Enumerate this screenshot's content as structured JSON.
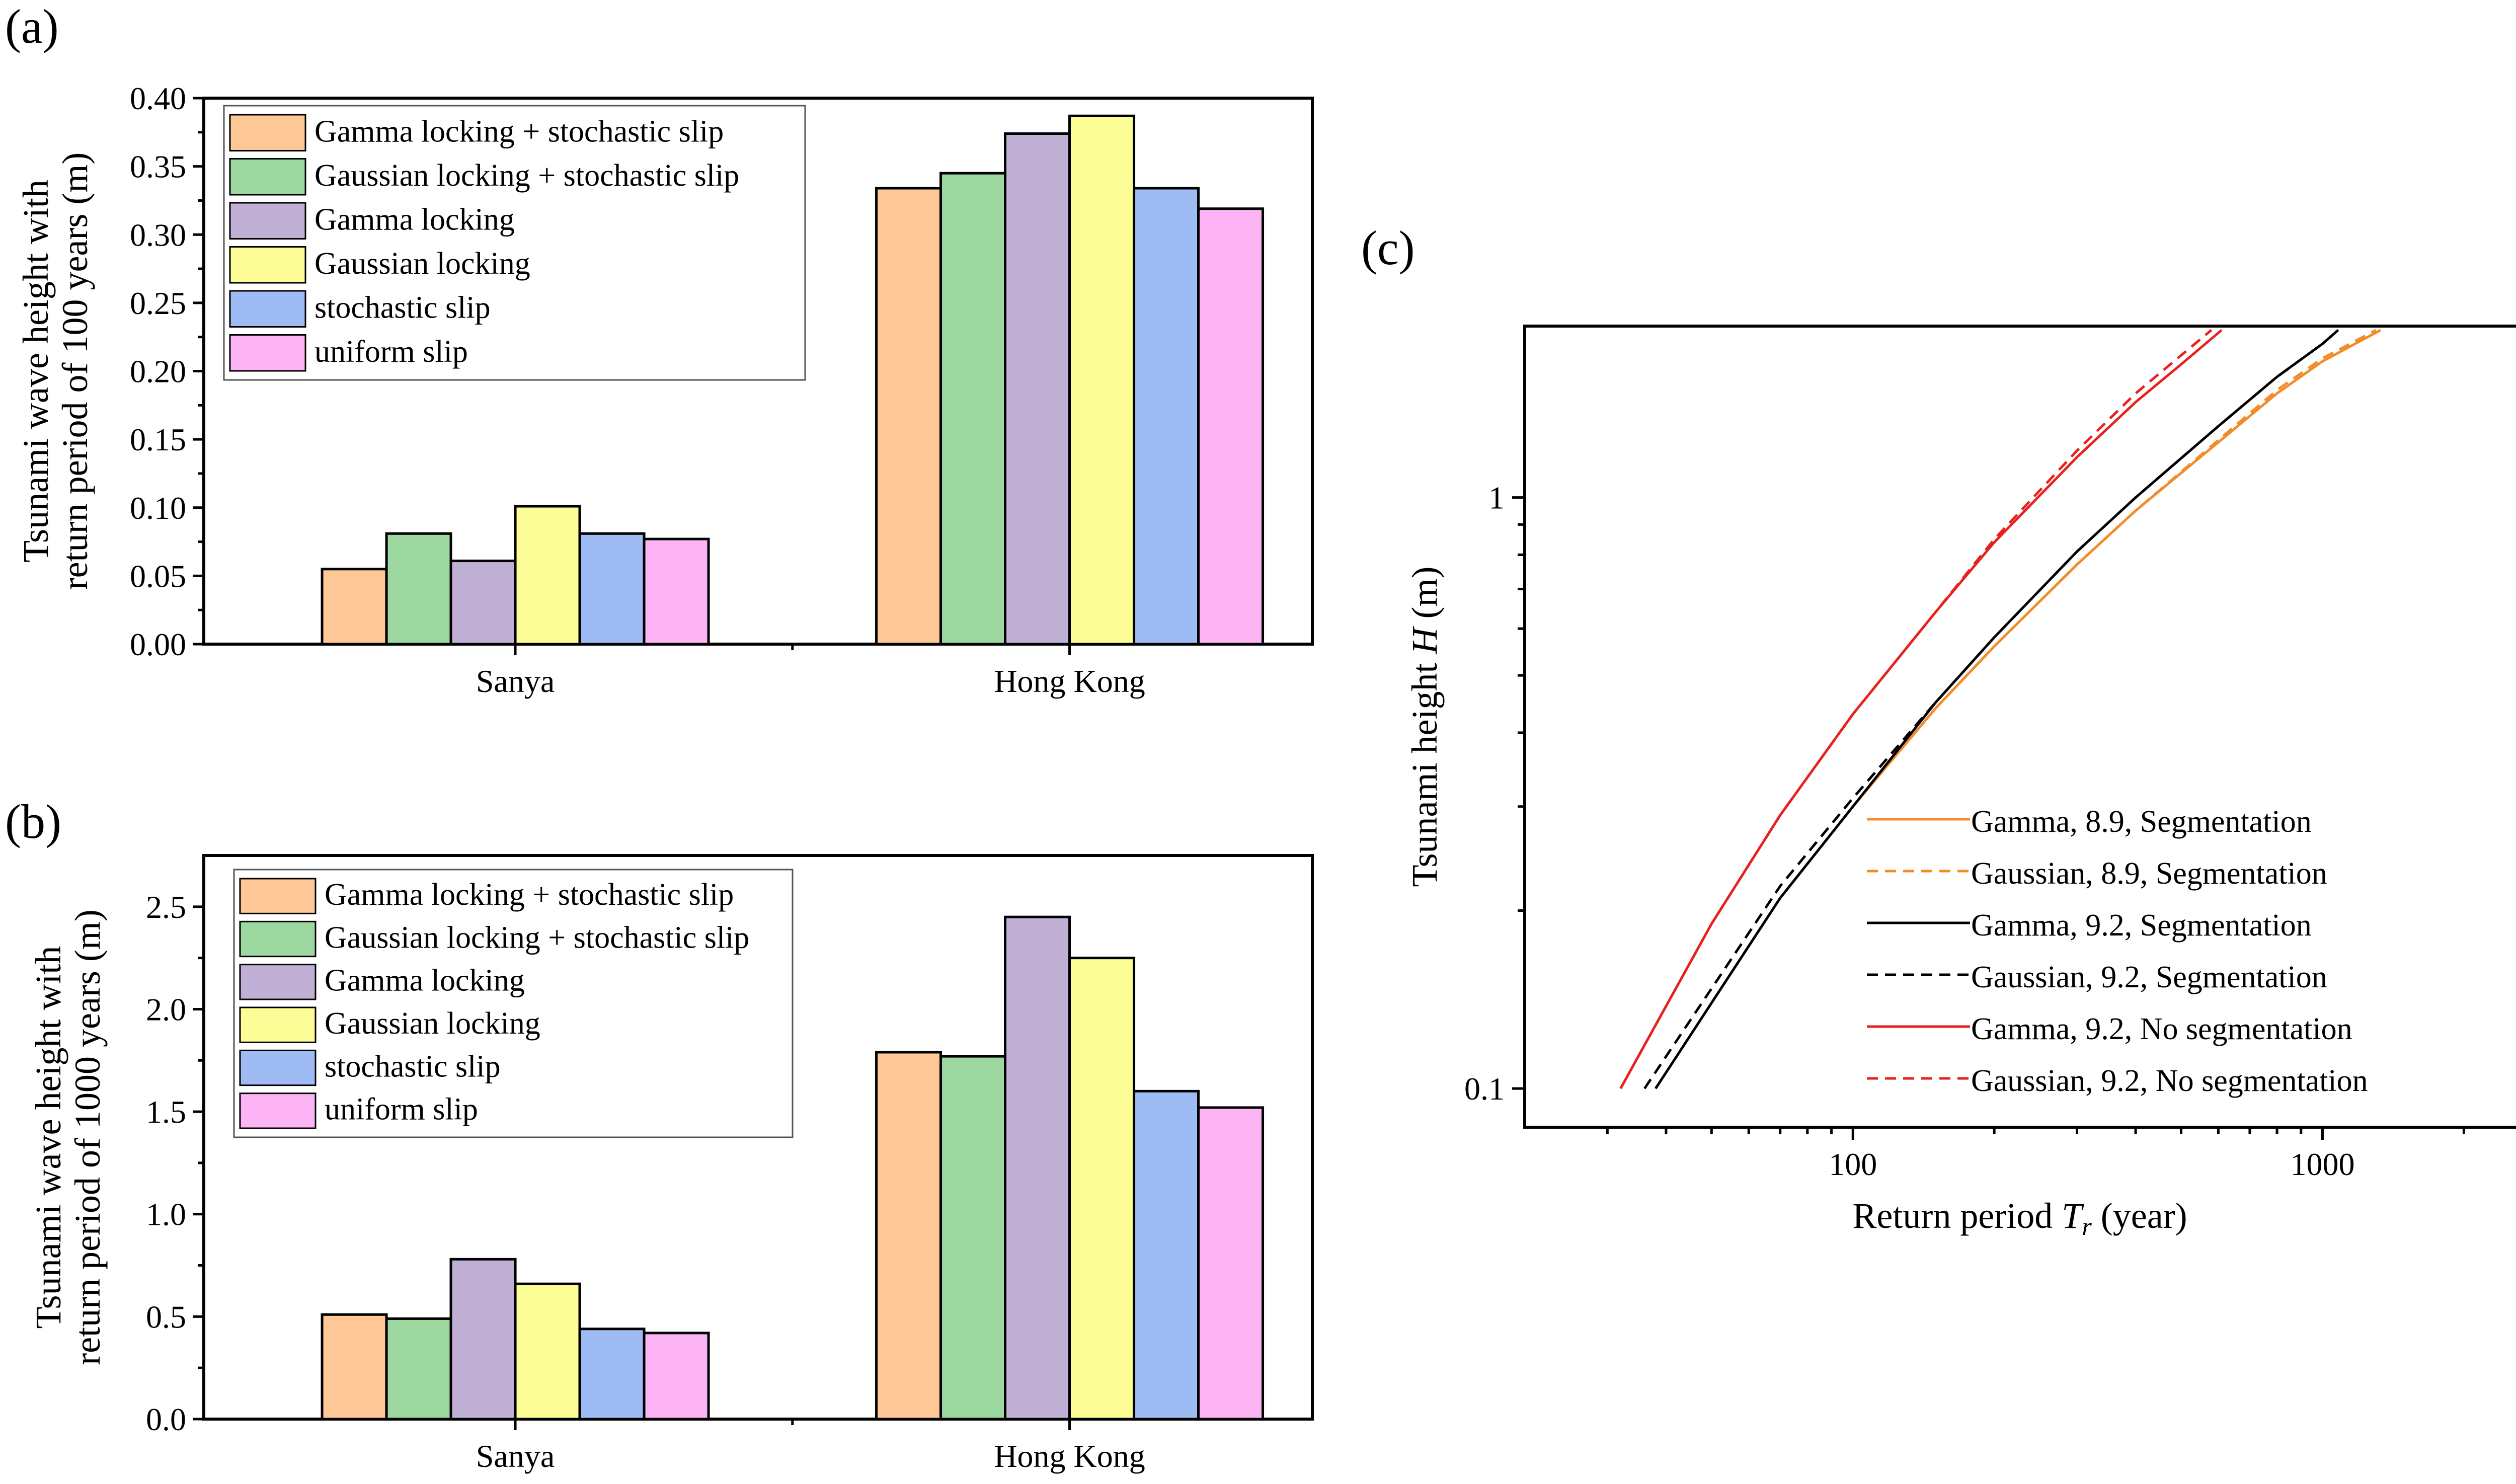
{
  "panels": {
    "a": "(a)",
    "b": "(b)",
    "c": "(c)"
  },
  "chart_data": [
    {
      "id": "a",
      "type": "bar",
      "categories": [
        "Sanya",
        "Hong Kong"
      ],
      "ylabel_line1": "Tsunami wave height with",
      "ylabel_line2": "return period of 100 years (m)",
      "ylim": [
        0,
        0.4
      ],
      "yticks": [
        0.0,
        0.05,
        0.1,
        0.15,
        0.2,
        0.25,
        0.3,
        0.35,
        0.4
      ],
      "ytick_labels": [
        "0.00",
        "0.05",
        "0.10",
        "0.15",
        "0.20",
        "0.25",
        "0.30",
        "0.35",
        "0.40"
      ],
      "legend_position": "top-left",
      "series": [
        {
          "name": "Gamma locking + stochastic slip",
          "color": "#fdc895",
          "values": [
            0.055,
            0.334
          ]
        },
        {
          "name": "Gaussian locking + stochastic slip",
          "color": "#9cd89f",
          "values": [
            0.081,
            0.345
          ]
        },
        {
          "name": "Gamma locking",
          "color": "#c0b0d6",
          "values": [
            0.061,
            0.374
          ]
        },
        {
          "name": "Gaussian locking",
          "color": "#fdfd97",
          "values": [
            0.101,
            0.387
          ]
        },
        {
          "name": "stochastic slip",
          "color": "#9ebbf4",
          "values": [
            0.081,
            0.334
          ]
        },
        {
          "name": "uniform slip",
          "color": "#fdb4f4",
          "values": [
            0.077,
            0.319
          ]
        }
      ]
    },
    {
      "id": "b",
      "type": "bar",
      "categories": [
        "Sanya",
        "Hong Kong"
      ],
      "ylabel_line1": "Tsunami wave height with",
      "ylabel_line2": "return period of 1000 years (m)",
      "ylim": [
        0,
        2.75
      ],
      "yticks": [
        0.0,
        0.5,
        1.0,
        1.5,
        2.0,
        2.5
      ],
      "ytick_labels": [
        "0.0",
        "0.5",
        "1.0",
        "1.5",
        "2.0",
        "2.5"
      ],
      "legend_position": "top-left",
      "series": [
        {
          "name": "Gamma locking + stochastic slip",
          "color": "#fdc895",
          "values": [
            0.51,
            1.79
          ]
        },
        {
          "name": "Gaussian locking + stochastic slip",
          "color": "#9cd89f",
          "values": [
            0.49,
            1.77
          ]
        },
        {
          "name": "Gamma locking",
          "color": "#c0b0d6",
          "values": [
            0.78,
            2.45
          ]
        },
        {
          "name": "Gaussian locking",
          "color": "#fdfd97",
          "values": [
            0.66,
            2.25
          ]
        },
        {
          "name": "stochastic slip",
          "color": "#9ebbf4",
          "values": [
            0.44,
            1.6
          ]
        },
        {
          "name": "uniform slip",
          "color": "#fdb4f4",
          "values": [
            0.42,
            1.52
          ]
        }
      ]
    },
    {
      "id": "c",
      "type": "line",
      "xlabel": "Return period",
      "xlabel_symbol": "T",
      "xlabel_sub": "r",
      "xlabel_unit": "(year)",
      "ylabel": "Tsunami height",
      "ylabel_symbol": "H",
      "ylabel_unit": "(m)",
      "xscale": "log",
      "yscale": "log",
      "xlim": [
        20,
        2700
      ],
      "ylim": [
        0.086,
        1.95
      ],
      "xticks": [
        100,
        1000
      ],
      "xtick_labels": [
        "100",
        "1000"
      ],
      "yticks": [
        0.1,
        1
      ],
      "ytick_labels": [
        "0.1",
        "1"
      ],
      "legend_position": "bottom-right",
      "series": [
        {
          "name": "Gamma, 8.9, Segmentation",
          "color": "#f28c28",
          "dash": "solid",
          "x": [
            38,
            70,
            100,
            150,
            200,
            300,
            400,
            600,
            800,
            1000,
            1330
          ],
          "y": [
            0.1,
            0.21,
            0.3,
            0.44,
            0.56,
            0.77,
            0.95,
            1.24,
            1.5,
            1.7,
            1.92
          ]
        },
        {
          "name": "Gaussian, 8.9, Segmentation",
          "color": "#f28c28",
          "dash": "dashed",
          "x": [
            38,
            70,
            100,
            150,
            200,
            300,
            400,
            600,
            800,
            1000,
            1300
          ],
          "y": [
            0.1,
            0.21,
            0.3,
            0.44,
            0.56,
            0.77,
            0.95,
            1.25,
            1.52,
            1.72,
            1.92
          ]
        },
        {
          "name": "Gamma, 9.2, Segmentation",
          "color": "#000000",
          "dash": "solid",
          "x": [
            38,
            70,
            100,
            150,
            200,
            300,
            400,
            600,
            800,
            1000,
            1080
          ],
          "y": [
            0.1,
            0.21,
            0.3,
            0.45,
            0.58,
            0.81,
            1.0,
            1.32,
            1.6,
            1.82,
            1.92
          ]
        },
        {
          "name": "Gaussian, 9.2, Segmentation",
          "color": "#000000",
          "dash": "dashed",
          "x": [
            36,
            70,
            100,
            150,
            200,
            300,
            400,
            600,
            800,
            1000,
            1080
          ],
          "y": [
            0.1,
            0.22,
            0.31,
            0.45,
            0.58,
            0.81,
            1.0,
            1.32,
            1.6,
            1.82,
            1.92
          ]
        },
        {
          "name": "Gamma, 9.2, No segmentation",
          "color": "#e8211f",
          "dash": "solid",
          "x": [
            32,
            50,
            70,
            100,
            150,
            200,
            300,
            400,
            500,
            610
          ],
          "y": [
            0.1,
            0.19,
            0.29,
            0.43,
            0.64,
            0.84,
            1.17,
            1.45,
            1.68,
            1.92
          ]
        },
        {
          "name": "Gaussian, 9.2, No segmentation",
          "color": "#e8211f",
          "dash": "dashed",
          "x": [
            32,
            50,
            70,
            100,
            150,
            200,
            300,
            400,
            500,
            580
          ],
          "y": [
            0.1,
            0.19,
            0.29,
            0.43,
            0.64,
            0.85,
            1.2,
            1.5,
            1.74,
            1.92
          ]
        }
      ]
    }
  ]
}
